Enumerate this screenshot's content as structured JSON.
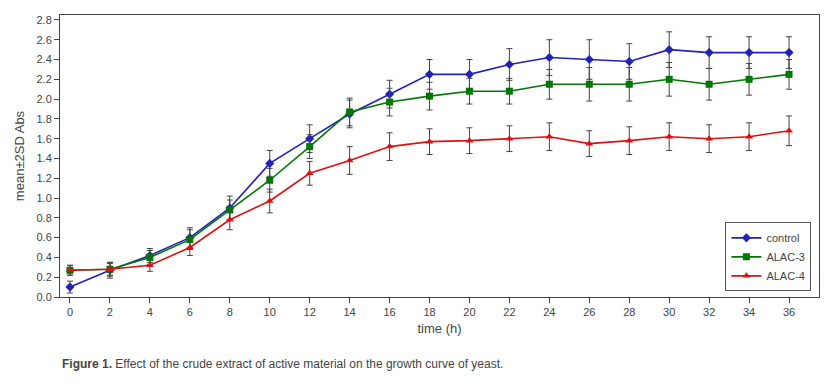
{
  "chart_data": {
    "type": "line",
    "x_label": "time (h)",
    "y_label": "mean±2SD Abs",
    "annotations": [
      "Figure 1.",
      "Effect of the crude extract of active material on the growth curve of yeast."
    ],
    "x": [
      0,
      2,
      4,
      6,
      8,
      10,
      12,
      14,
      16,
      18,
      20,
      22,
      24,
      26,
      28,
      30,
      32,
      34,
      36
    ],
    "series": [
      {
        "name": "control",
        "color": "#2222bb",
        "marker": "diamond",
        "line_style": "solid",
        "values": [
          0.1,
          0.27,
          0.42,
          0.6,
          0.9,
          1.35,
          1.6,
          1.85,
          2.05,
          2.25,
          2.25,
          2.35,
          2.42,
          2.4,
          2.38,
          2.5,
          2.47,
          2.47,
          2.47
        ],
        "errors": [
          0.06,
          0.08,
          0.07,
          0.1,
          0.12,
          0.13,
          0.14,
          0.14,
          0.14,
          0.15,
          0.15,
          0.16,
          0.18,
          0.2,
          0.18,
          0.18,
          0.16,
          0.16,
          0.16
        ]
      },
      {
        "name": "ALAC-3",
        "color": "#007700",
        "marker": "square",
        "line_style": "solid",
        "values": [
          0.27,
          0.28,
          0.4,
          0.58,
          0.88,
          1.18,
          1.52,
          1.87,
          1.97,
          2.03,
          2.08,
          2.08,
          2.15,
          2.15,
          2.15,
          2.2,
          2.15,
          2.2,
          2.25
        ],
        "errors": [
          0.05,
          0.07,
          0.07,
          0.1,
          0.1,
          0.12,
          0.12,
          0.14,
          0.14,
          0.14,
          0.13,
          0.13,
          0.15,
          0.17,
          0.17,
          0.17,
          0.16,
          0.16,
          0.15
        ]
      },
      {
        "name": "ALAC-4",
        "color": "#dd1111",
        "marker": "triangle-up",
        "line_style": "solid",
        "values": [
          0.27,
          0.28,
          0.32,
          0.5,
          0.78,
          0.97,
          1.25,
          1.38,
          1.52,
          1.57,
          1.58,
          1.6,
          1.62,
          1.55,
          1.58,
          1.62,
          1.6,
          1.62,
          1.68
        ],
        "errors": [
          0.05,
          0.06,
          0.06,
          0.08,
          0.1,
          0.12,
          0.12,
          0.14,
          0.14,
          0.13,
          0.13,
          0.13,
          0.14,
          0.13,
          0.14,
          0.14,
          0.14,
          0.14,
          0.15
        ]
      }
    ],
    "xlim": [
      -0.5,
      37.5
    ],
    "ylim": [
      0.0,
      2.85
    ],
    "xticks": [
      0,
      2,
      4,
      6,
      8,
      10,
      12,
      14,
      16,
      18,
      20,
      22,
      24,
      26,
      28,
      30,
      32,
      34,
      36
    ],
    "yticks": [
      0.0,
      0.2,
      0.4,
      0.6,
      0.8,
      1.0,
      1.2,
      1.4,
      1.6,
      1.8,
      2.0,
      2.2,
      2.4,
      2.6,
      2.8
    ],
    "grid": false,
    "legend": "lower right"
  }
}
